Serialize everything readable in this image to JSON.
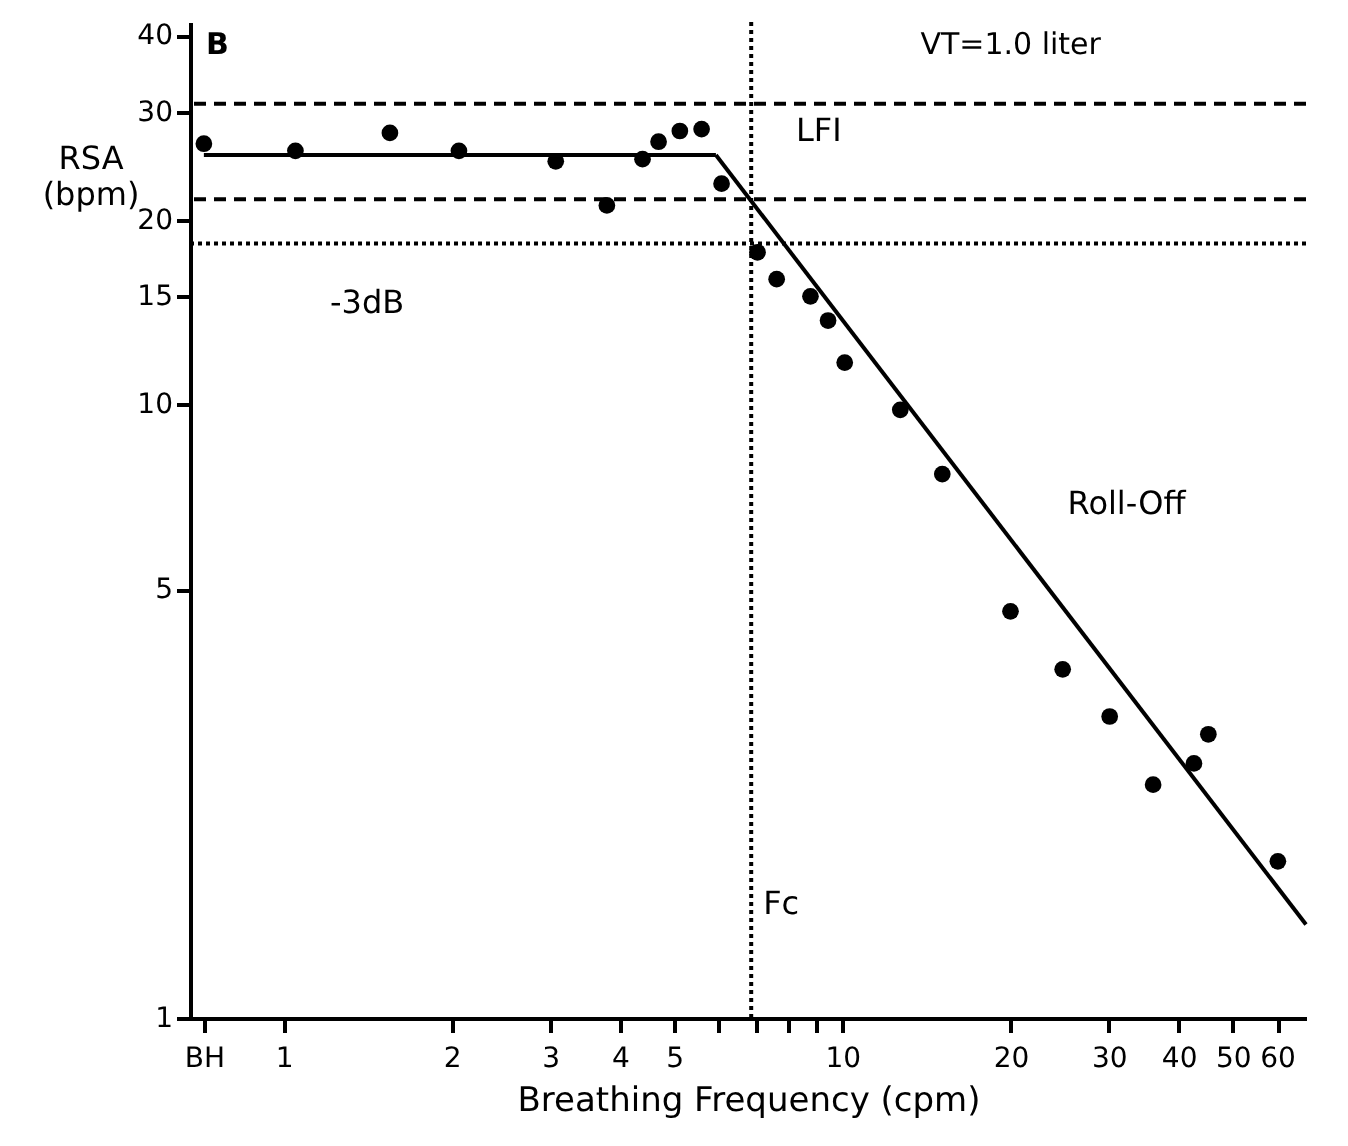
{
  "chart_data": {
    "type": "scatter",
    "xlabel": "Breathing Frequency (cpm)",
    "ylabel": "RSA (bpm)",
    "xlim": [
      0.68,
      67.6
    ],
    "ylim": [
      1,
      42
    ],
    "xticks": [
      {
        "value": 0.72,
        "label": "BH"
      },
      1,
      2,
      3,
      4,
      5,
      {
        "value": 6,
        "label": null
      },
      {
        "value": 7,
        "label": null
      },
      {
        "value": 8,
        "label": null
      },
      {
        "value": 9,
        "label": null
      },
      10,
      20,
      30,
      40,
      50,
      60
    ],
    "yticks": [
      1,
      5,
      10,
      15,
      20,
      30,
      40
    ],
    "log": "xy",
    "grid": false,
    "marker": "circle",
    "series": [
      {
        "color": "#000000",
        "x": [
          0.72,
          1.05,
          1.55,
          2.06,
          3.07,
          3.79,
          4.39,
          4.69,
          5.12,
          5.6,
          6.08,
          7.05,
          7.63,
          8.77,
          9.43,
          10.1,
          12.7,
          15.1,
          20.0,
          24.8,
          30.1,
          36.0,
          42.6,
          45.2,
          60.2
        ],
        "values": [
          26.6,
          25.9,
          27.7,
          25.9,
          24.9,
          21.1,
          25.1,
          26.8,
          27.9,
          28.1,
          22.9,
          17.7,
          16.0,
          15.0,
          13.7,
          11.7,
          9.8,
          7.7,
          4.6,
          3.7,
          3.1,
          2.4,
          2.6,
          2.9,
          1.8
        ]
      },
      {
        "type": "line",
        "color": "#000000",
        "line_style": "solid",
        "marker": "none",
        "x": [
          0.72,
          5.94
        ],
        "values": [
          25.5,
          25.5
        ]
      },
      {
        "type": "line",
        "color": "#000000",
        "line_style": "solid",
        "marker": "none",
        "x": [
          5.94,
          67.6
        ],
        "values": [
          25.5,
          1.42
        ]
      }
    ],
    "ref_lines": [
      {
        "axis": "y",
        "value": 30.9,
        "label": null,
        "line_style": "dashed",
        "color": "#000000"
      },
      {
        "axis": "y",
        "value": 21.6,
        "label": null,
        "line_style": "dashed",
        "color": "#000000"
      },
      {
        "axis": "y",
        "value": 18.3,
        "label": "-3dB",
        "line_style": "dotted",
        "color": "#000000"
      },
      {
        "axis": "x",
        "value": 6.87,
        "label": "Fc",
        "line_style": "dotted",
        "color": "#000000"
      }
    ],
    "annotations": [
      "B",
      "VT=1.0 liter",
      {
        "text": "LFI",
        "x": 5.94,
        "y": 25.5
      },
      {
        "text": "Roll-Off",
        "x": 18.2,
        "y": 6.3
      }
    ]
  }
}
